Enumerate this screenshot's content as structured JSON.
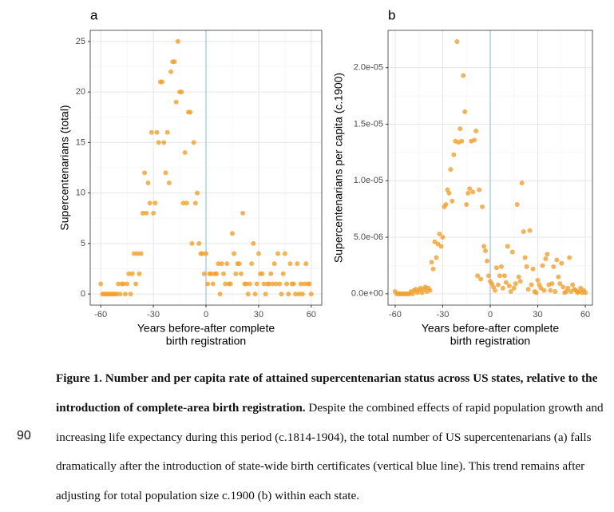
{
  "chart_data": [
    {
      "type": "scatter",
      "title": "a",
      "xlabel": [
        "Years before-after complete",
        "birth registration"
      ],
      "ylabel": "Supercentenarians (total)",
      "color": "#f0a02e",
      "grid": true,
      "minor_grid": true,
      "reference_line_x": 0,
      "reference_color": "#9cc9e2",
      "xlim": [
        -66,
        66
      ],
      "xticks": [
        -60,
        -30,
        0,
        30,
        60
      ],
      "ylim": [
        -1.1,
        26.1
      ],
      "yticks": [
        0,
        5,
        10,
        15,
        20,
        25
      ],
      "x": [
        -60,
        -59,
        -58,
        -57,
        -56,
        -55,
        -54,
        -53,
        -52,
        -51,
        -50,
        -49,
        -48,
        -47,
        -46,
        -45,
        -44,
        -43,
        -42,
        -41,
        -40,
        -39,
        -38,
        -37,
        -36,
        -35,
        -34,
        -33,
        -32,
        -31,
        -30,
        -29,
        -28,
        -27,
        -26,
        -25,
        -24,
        -23,
        -22,
        -21,
        -20,
        -19,
        -18,
        -17,
        -16,
        -15,
        -14,
        -13,
        -12,
        -11,
        -10,
        -9,
        -8,
        -7,
        -6,
        -5,
        -4,
        -3,
        -2,
        -1,
        0,
        1,
        2,
        3,
        4,
        5,
        6,
        7,
        8,
        9,
        10,
        11,
        12,
        13,
        14,
        15,
        16,
        17,
        18,
        19,
        20,
        21,
        22,
        23,
        24,
        25,
        26,
        27,
        28,
        29,
        30,
        31,
        32,
        33,
        34,
        35,
        36,
        37,
        38,
        39,
        40,
        41,
        42,
        43,
        44,
        45,
        46,
        47,
        48,
        49,
        50,
        51,
        52,
        53,
        54,
        55,
        56,
        57,
        58,
        59,
        60
      ],
      "values": [
        1,
        0,
        0,
        0,
        0,
        0,
        0,
        0,
        0,
        0,
        1,
        0,
        1,
        1,
        0,
        1,
        2,
        0,
        2,
        4,
        1,
        4,
        2,
        4,
        8,
        12,
        8,
        11,
        9,
        16,
        8,
        9,
        16,
        15,
        21,
        21,
        15,
        12,
        16,
        11,
        22,
        23,
        23,
        19,
        25,
        20,
        20,
        9,
        14,
        9,
        18,
        18,
        5,
        15,
        9,
        10,
        5,
        4,
        4,
        2,
        4,
        1,
        2,
        2,
        1,
        2,
        2,
        3,
        0,
        3,
        2,
        1,
        3,
        1,
        1,
        6,
        4,
        2,
        3,
        3,
        2,
        8,
        1,
        1,
        0,
        1,
        3,
        5,
        0,
        1,
        4,
        2,
        2,
        1,
        0,
        1,
        1,
        2,
        1,
        3,
        1,
        4,
        1,
        0,
        2,
        4,
        1,
        0,
        3,
        1,
        1,
        0,
        3,
        0,
        1,
        0,
        1,
        3,
        1,
        1,
        0
      ]
    },
    {
      "type": "scatter",
      "title": "b",
      "xlabel": [
        "Years before-after complete",
        "birth registration"
      ],
      "ylabel": "Supercentenarians per capita (c.1900)",
      "color": "#f0a02e",
      "grid": true,
      "minor_grid": true,
      "reference_line_x": 0,
      "reference_color": "#9cc9e2",
      "xlim": [
        -64.5,
        64.5
      ],
      "xticks": [
        -60,
        -30,
        0,
        30,
        60
      ],
      "ylim": [
        -1e-06,
        2.33e-05
      ],
      "yticks": [
        {
          "value": 0,
          "label": "0.0e+00"
        },
        {
          "value": 5e-06,
          "label": "5.0e-06"
        },
        {
          "value": 1e-05,
          "label": "1.0e-05"
        },
        {
          "value": 1.5e-05,
          "label": "1.5e-05"
        },
        {
          "value": 2e-05,
          "label": "2.0e-05"
        }
      ],
      "x": [
        -60,
        -59,
        -58,
        -57,
        -56,
        -55,
        -54,
        -53,
        -52,
        -51,
        -50,
        -49,
        -48,
        -47,
        -46,
        -45,
        -44,
        -43,
        -42,
        -41,
        -40,
        -39,
        -38,
        -37,
        -36,
        -35,
        -34,
        -33,
        -32,
        -31,
        -30,
        -29,
        -28,
        -27,
        -26,
        -25,
        -24,
        -23,
        -22,
        -21,
        -20,
        -19,
        -18,
        -17,
        -16,
        -15,
        -14,
        -13,
        -12,
        -11,
        -10,
        -9,
        -8,
        -7,
        -6,
        -5,
        -4,
        -3,
        -2,
        -1,
        0,
        1,
        2,
        3,
        4,
        5,
        6,
        7,
        8,
        9,
        10,
        11,
        12,
        13,
        14,
        15,
        16,
        17,
        18,
        19,
        20,
        21,
        22,
        23,
        24,
        25,
        26,
        27,
        28,
        29,
        30,
        31,
        32,
        33,
        34,
        35,
        36,
        37,
        38,
        39,
        40,
        41,
        42,
        43,
        44,
        45,
        46,
        47,
        48,
        49,
        50,
        51,
        52,
        53,
        54,
        55,
        56,
        57,
        58,
        59,
        60
      ],
      "values": [
        2e-07,
        0,
        0,
        0,
        0,
        0,
        0,
        0,
        0,
        0,
        2e-07,
        0,
        3e-07,
        4e-07,
        1e-07,
        3e-07,
        5e-07,
        1e-07,
        4e-07,
        6e-07,
        2e-07,
        5e-07,
        3e-07,
        2.8e-06,
        2.2e-06,
        4.6e-06,
        3.2e-06,
        4.4e-06,
        5.3e-06,
        4.2e-06,
        5e-06,
        7.7e-06,
        7.9e-06,
        9.2e-06,
        8.9e-06,
        1.1e-05,
        8.2e-06,
        1.23e-05,
        1.35e-05,
        2.23e-05,
        1.34e-05,
        1.46e-05,
        1.35e-05,
        1.93e-05,
        1.61e-05,
        7.9e-06,
        8.9e-06,
        9.3e-06,
        1.35e-05,
        9e-06,
        1.36e-05,
        1.44e-05,
        1.6e-06,
        9.2e-06,
        1.3e-06,
        7.7e-06,
        4.2e-06,
        3.8e-06,
        2.9e-06,
        1.6e-06,
        1.1e-06,
        9e-07,
        6e-07,
        3e-07,
        2.3e-06,
        8e-07,
        1.6e-06,
        2.4e-06,
        5e-07,
        1.6e-06,
        1e-06,
        4.2e-06,
        7e-07,
        2e-07,
        3.7e-06,
        5e-07,
        9e-07,
        7.9e-06,
        1.5e-06,
        1.1e-06,
        9.8e-06,
        5.5e-06,
        3.2e-06,
        2.4e-06,
        4e-07,
        5.6e-06,
        8e-07,
        2.2e-06,
        2e-07,
        1e-07,
        1.2e-06,
        8e-07,
        5e-07,
        2.5e-06,
        3e-07,
        3.1e-06,
        3.5e-06,
        8e-07,
        3e-07,
        9e-07,
        2.4e-06,
        2e-07,
        3e-06,
        1.5e-06,
        9e-07,
        2.7e-06,
        6e-07,
        1e-07,
        2e-07,
        5e-07,
        3.2e-06,
        2e-07,
        8e-07,
        4e-07,
        3e-07,
        1e-07,
        2e-07,
        5e-07,
        1e-07,
        3e-07,
        1e-07
      ]
    }
  ],
  "caption": {
    "bold": "Figure 1. Number and per capita rate of attained supercentenarian status across US states, relative to the introduction of complete-area birth registration.",
    "text": " Despite the combined effects of rapid population growth and increasing life expectancy during this period (c.1814-1904), the total number of US supercentenarians (a) falls dramatically after the introduction of state-wide birth certificates (vertical blue line). This trend remains after adjusting for total population size c.1900 (b) within each state."
  },
  "line_number": 90
}
